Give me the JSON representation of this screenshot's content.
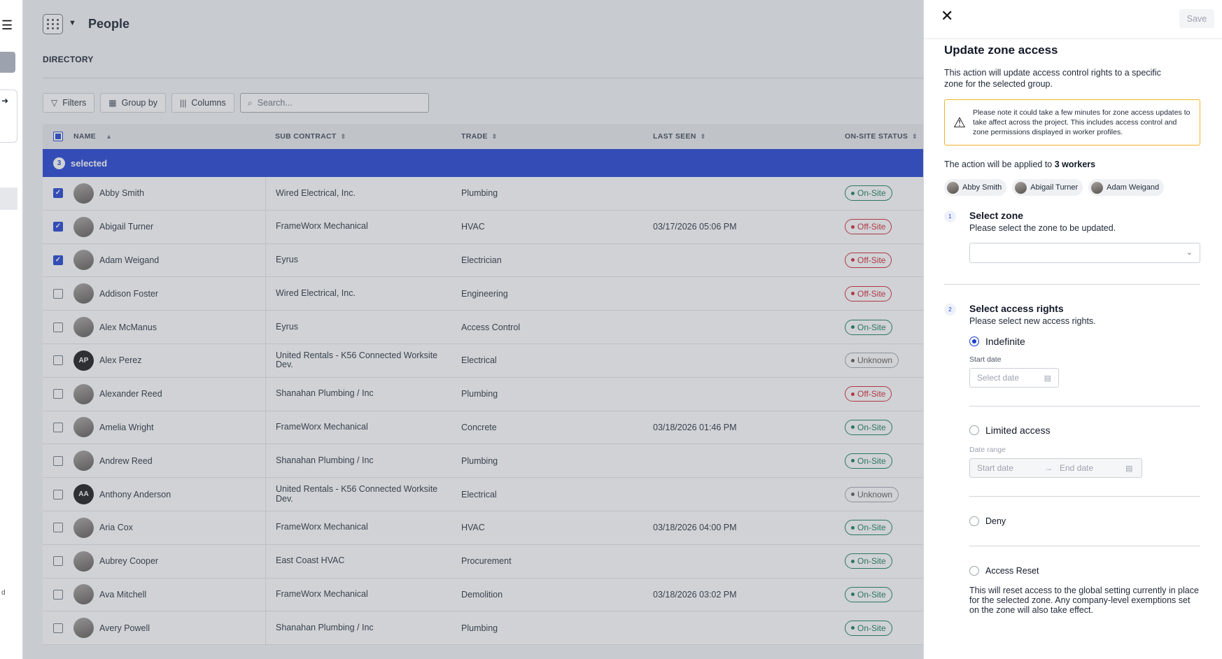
{
  "header": {
    "title": "People",
    "section": "DIRECTORY"
  },
  "toolbar": {
    "filters": "Filters",
    "group_by": "Group by",
    "columns": "Columns",
    "search_placeholder": "Search..."
  },
  "table": {
    "columns": [
      "NAME",
      "SUB CONTRACT",
      "TRADE",
      "LAST SEEN",
      "ON-SITE STATUS"
    ],
    "selection": {
      "count": "3",
      "label": "selected"
    },
    "rows": [
      {
        "name": "Abby Smith",
        "initials": "",
        "sub": "Wired Electrical, Inc.",
        "trade": "Plumbing",
        "seen": "",
        "status": "On-Site",
        "kind": "on",
        "checked": true
      },
      {
        "name": "Abigail Turner",
        "initials": "",
        "sub": "FrameWorx Mechanical",
        "trade": "HVAC",
        "seen": "03/17/2026 05:06 PM",
        "status": "Off-Site",
        "kind": "off",
        "checked": true
      },
      {
        "name": "Adam Weigand",
        "initials": "",
        "sub": "Eyrus",
        "trade": "Electrician",
        "seen": "",
        "status": "Off-Site",
        "kind": "off",
        "checked": true
      },
      {
        "name": "Addison Foster",
        "initials": "",
        "sub": "Wired Electrical, Inc.",
        "trade": "Engineering",
        "seen": "",
        "status": "Off-Site",
        "kind": "off",
        "checked": false
      },
      {
        "name": "Alex McManus",
        "initials": "",
        "sub": "Eyrus",
        "trade": "Access Control",
        "seen": "",
        "status": "On-Site",
        "kind": "on",
        "checked": false
      },
      {
        "name": "Alex Perez",
        "initials": "AP",
        "sub": "United Rentals - K56 Connected Worksite Dev.",
        "trade": "Electrical",
        "seen": "",
        "status": "Unknown",
        "kind": "unk",
        "checked": false
      },
      {
        "name": "Alexander Reed",
        "initials": "",
        "sub": "Shanahan Plumbing / Inc",
        "trade": "Plumbing",
        "seen": "",
        "status": "Off-Site",
        "kind": "off",
        "checked": false
      },
      {
        "name": "Amelia Wright",
        "initials": "",
        "sub": "FrameWorx Mechanical",
        "trade": "Concrete",
        "seen": "03/18/2026 01:46 PM",
        "status": "On-Site",
        "kind": "on",
        "checked": false
      },
      {
        "name": "Andrew Reed",
        "initials": "",
        "sub": "Shanahan Plumbing / Inc",
        "trade": "Plumbing",
        "seen": "",
        "status": "On-Site",
        "kind": "on",
        "checked": false
      },
      {
        "name": "Anthony Anderson",
        "initials": "AA",
        "sub": "United Rentals - K56 Connected Worksite Dev.",
        "trade": "Electrical",
        "seen": "",
        "status": "Unknown",
        "kind": "unk",
        "checked": false
      },
      {
        "name": "Aria Cox",
        "initials": "",
        "sub": "FrameWorx Mechanical",
        "trade": "HVAC",
        "seen": "03/18/2026 04:00 PM",
        "status": "On-Site",
        "kind": "on",
        "checked": false
      },
      {
        "name": "Aubrey Cooper",
        "initials": "",
        "sub": "East Coast HVAC",
        "trade": "Procurement",
        "seen": "",
        "status": "On-Site",
        "kind": "on",
        "checked": false
      },
      {
        "name": "Ava Mitchell",
        "initials": "",
        "sub": "FrameWorx Mechanical",
        "trade": "Demolition",
        "seen": "03/18/2026 03:02 PM",
        "status": "On-Site",
        "kind": "on",
        "checked": false
      },
      {
        "name": "Avery Powell",
        "initials": "",
        "sub": "Shanahan Plumbing / Inc",
        "trade": "Plumbing",
        "seen": "",
        "status": "On-Site",
        "kind": "on",
        "checked": false
      }
    ]
  },
  "drawer": {
    "save": "Save",
    "title": "Update zone access",
    "description": "This action will update access control rights to a specific zone for the selected group.",
    "warning": "Please note it could take a few minutes for zone access updates to take affect across the project. This includes access control and zone permissions displayed in worker profiles.",
    "applied_prefix": "The action will be applied to",
    "applied_count": "3 workers",
    "chips": [
      "Abby Smith",
      "Abigail Turner",
      "Adam Weigand"
    ],
    "step1": {
      "num": "1",
      "title": "Select zone",
      "subtitle": "Please select the zone to be updated."
    },
    "step2": {
      "num": "2",
      "title": "Select access rights",
      "subtitle": "Please select new access rights."
    },
    "options": {
      "indefinite": "Indefinite",
      "start_label": "Start date",
      "start_placeholder": "Select date",
      "limited": "Limited access",
      "range_label": "Date range",
      "range_start": "Start date",
      "range_end": "End date",
      "deny": "Deny",
      "reset": "Access Reset",
      "reset_desc": "This will reset access to the global setting currently in place for the selected zone. Any company-level exemptions set on the zone will also take effect."
    },
    "selected_option": "indefinite"
  },
  "colors": {
    "accent": "#1a3bd1",
    "onsite": "#0f7a4f",
    "offsite": "#d0202e",
    "warning_border": "#f0b429"
  }
}
